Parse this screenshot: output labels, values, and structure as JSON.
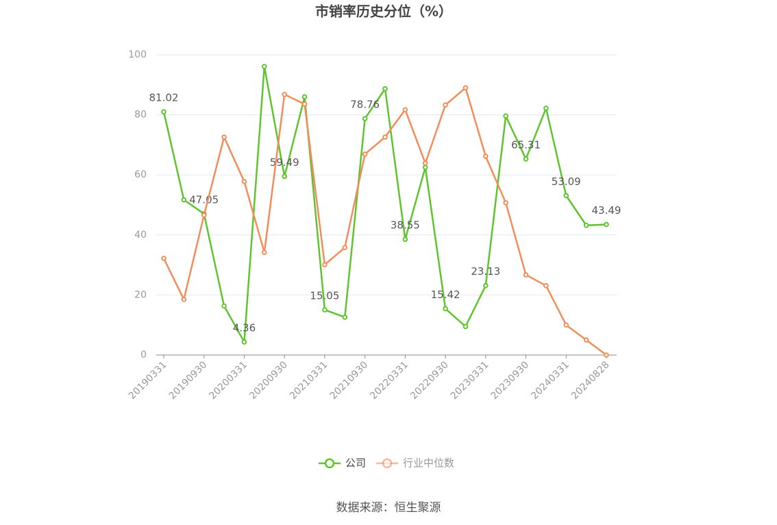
{
  "chart_data": {
    "type": "line",
    "title": "市销率历史分位（%）",
    "source": "数据来源：恒生聚源",
    "categories": [
      "20190331",
      null,
      "20190930",
      null,
      "20200331",
      null,
      "20200930",
      null,
      "20210331",
      null,
      "20210930",
      null,
      "20220331",
      null,
      "20220930",
      null,
      "20230331",
      null,
      "20230930",
      null,
      "20240331",
      null,
      "20240828"
    ],
    "series": [
      {
        "name": "公司",
        "color": "#5dc42d",
        "values": [
          81.02,
          51.7,
          47.05,
          16.3,
          4.36,
          96.1,
          59.49,
          86.0,
          15.05,
          12.6,
          78.76,
          88.7,
          38.55,
          62.5,
          15.42,
          9.5,
          23.13,
          79.6,
          65.31,
          82.2,
          53.09,
          43.2,
          43.49
        ],
        "value_labels": [
          "81.02",
          null,
          "47.05",
          null,
          "4.36",
          null,
          "59.49",
          null,
          "15.05",
          null,
          "78.76",
          null,
          "38.55",
          null,
          "15.42",
          null,
          "23.13",
          null,
          "65.31",
          null,
          "53.09",
          null,
          "43.49"
        ]
      },
      {
        "name": "行业中位数",
        "color": "#f28c5a",
        "values": [
          32.2,
          18.5,
          46.6,
          72.6,
          57.8,
          34.2,
          86.8,
          83.6,
          30.1,
          35.8,
          66.9,
          72.6,
          81.7,
          63.9,
          83.3,
          89.0,
          66.2,
          50.7,
          26.7,
          23.1,
          10.0,
          5.0,
          0
        ]
      }
    ],
    "ylim": [
      0,
      100
    ],
    "yticks": [
      0,
      20,
      40,
      60,
      80,
      100
    ],
    "grid": true
  }
}
